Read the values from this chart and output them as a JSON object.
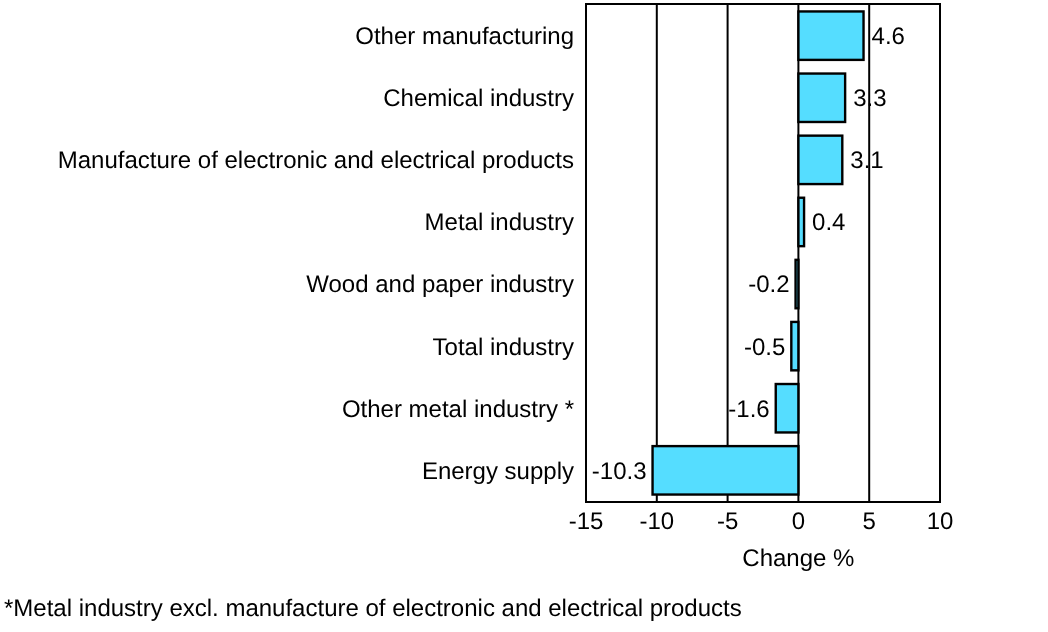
{
  "chart_data": {
    "type": "bar",
    "orientation": "horizontal",
    "categories": [
      "Other manufacturing",
      "Chemical industry",
      "Manufacture of electronic and electrical products",
      "Metal industry",
      "Wood and paper industry",
      "Total industry",
      "Other metal industry *",
      "Energy supply"
    ],
    "values": [
      4.6,
      3.3,
      3.1,
      0.4,
      -0.2,
      -0.5,
      -1.6,
      -10.3
    ],
    "color": "#55ddff",
    "xlim": [
      -15,
      10
    ],
    "xticks": [
      -15,
      -10,
      -5,
      0,
      5,
      10
    ],
    "xlabel": "Change %",
    "grid": "x",
    "data_labels": true,
    "annotations": [
      "*Metal industry excl. manufacture of electronic and electrical products"
    ]
  }
}
